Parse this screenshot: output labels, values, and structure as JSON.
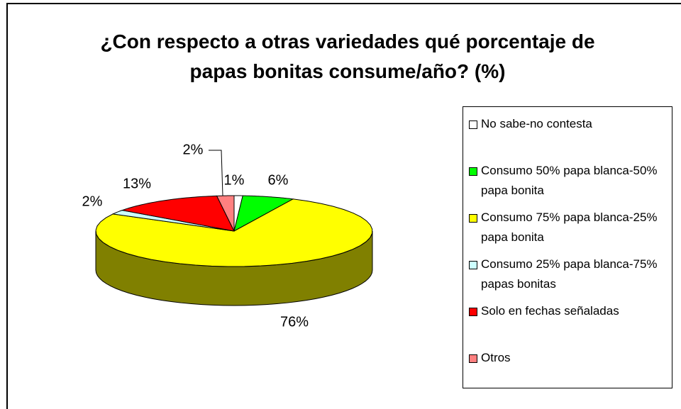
{
  "chart_data": {
    "type": "pie3d",
    "title": "¿Con respecto a otras variedades qué porcentaje de papas bonitas consume/año? (%)",
    "categories": [
      "No sabe-no contesta",
      "Consumo 50% papa blanca-50% papa bonita",
      "Consumo 75% papa blanca-25% papa bonita",
      "Consumo 25% papa blanca-75% papas bonitas",
      "Solo en fechas señaladas",
      "Otros"
    ],
    "values": [
      1,
      6,
      76,
      2,
      13,
      2
    ],
    "value_labels": [
      "1%",
      "6%",
      "76%",
      "2%",
      "13%",
      "2%"
    ],
    "colors": [
      "#ffffff",
      "#00ff00",
      "#ffff00",
      "#ccffff",
      "#ff0000",
      "#ff8080"
    ],
    "legend": "right"
  }
}
